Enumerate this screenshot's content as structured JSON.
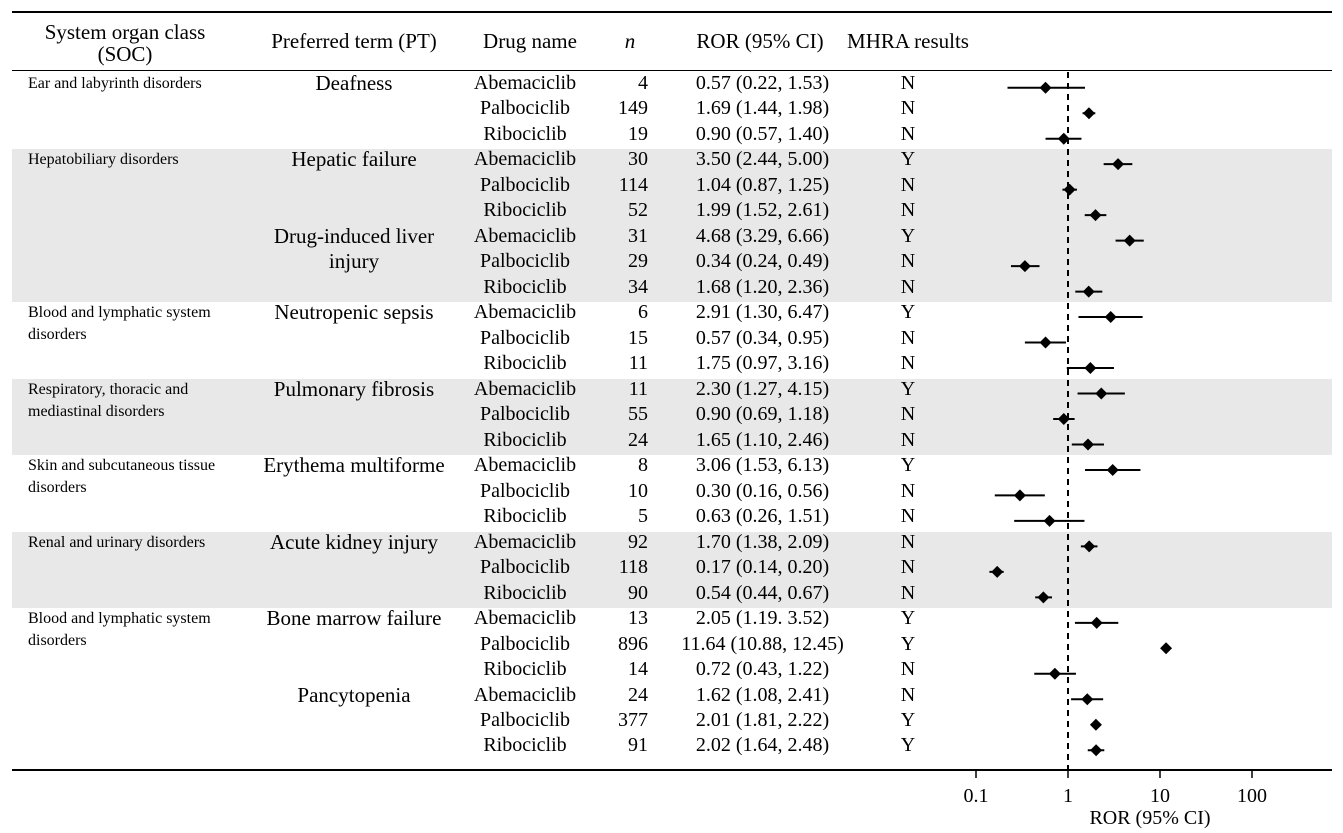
{
  "headers": {
    "soc": "System organ class\n(SOC)",
    "pt": "Preferred term (PT)",
    "drug": "Drug name",
    "n": "n",
    "ror": "ROR (95% CI)",
    "mhra": "MHRA results"
  },
  "groups": [
    {
      "soc": "Ear and labyrinth disorders",
      "shaded": false,
      "rows": 3,
      "pts": [
        {
          "label": "Deafness",
          "row": 0
        }
      ]
    },
    {
      "soc": "Hepatobiliary disorders",
      "shaded": true,
      "rows": 6,
      "pts": [
        {
          "label": "Hepatic failure",
          "row": 0
        },
        {
          "label": "Drug-induced liver\ninjury",
          "row": 3
        }
      ]
    },
    {
      "soc": "Blood and lymphatic system\ndisorders",
      "shaded": false,
      "rows": 3,
      "pts": [
        {
          "label": "Neutropenic sepsis",
          "row": 0
        }
      ]
    },
    {
      "soc": "Respiratory, thoracic and\nmediastinal disorders",
      "shaded": true,
      "rows": 3,
      "pts": [
        {
          "label": "Pulmonary fibrosis",
          "row": 0
        }
      ]
    },
    {
      "soc": "Skin and subcutaneous tissue\ndisorders",
      "shaded": false,
      "rows": 3,
      "pts": [
        {
          "label": "Erythema multiforme",
          "row": 0
        }
      ]
    },
    {
      "soc": "Renal and urinary disorders",
      "shaded": true,
      "rows": 3,
      "pts": [
        {
          "label": "Acute kidney injury",
          "row": 0
        }
      ]
    },
    {
      "soc": "Blood and lymphatic system\ndisorders",
      "shaded": false,
      "rows": 6,
      "pts": [
        {
          "label": "Bone marrow failure",
          "row": 0
        },
        {
          "label": "Pancytopenia",
          "row": 3
        }
      ]
    }
  ],
  "chart_data": {
    "type": "forest",
    "x_scale": "log",
    "xlim": [
      0.1,
      100
    ],
    "x_ticks": [
      0.1,
      1,
      10,
      100
    ],
    "x_tick_labels": [
      "0.1",
      "1",
      "10",
      "100"
    ],
    "reference_line": 1,
    "xlabel": "ROR (95% CI)",
    "rows": [
      {
        "drug": "Abemaciclib",
        "n": "4",
        "ror_text": "0.57 (0.22, 1.53)",
        "mhra": "N",
        "est": 0.57,
        "lo": 0.22,
        "hi": 1.53
      },
      {
        "drug": "Palbociclib",
        "n": "149",
        "ror_text": "1.69 (1.44, 1.98)",
        "mhra": "N",
        "est": 1.69,
        "lo": 1.44,
        "hi": 1.98
      },
      {
        "drug": "Ribociclib",
        "n": "19",
        "ror_text": "0.90 (0.57, 1.40)",
        "mhra": "N",
        "est": 0.9,
        "lo": 0.57,
        "hi": 1.4
      },
      {
        "drug": "Abemaciclib",
        "n": "30",
        "ror_text": "3.50 (2.44, 5.00)",
        "mhra": "Y",
        "est": 3.5,
        "lo": 2.44,
        "hi": 5.0
      },
      {
        "drug": "Palbociclib",
        "n": "114",
        "ror_text": "1.04 (0.87, 1.25)",
        "mhra": "N",
        "est": 1.04,
        "lo": 0.87,
        "hi": 1.25
      },
      {
        "drug": "Ribociclib",
        "n": "52",
        "ror_text": "1.99 (1.52, 2.61)",
        "mhra": "N",
        "est": 1.99,
        "lo": 1.52,
        "hi": 2.61
      },
      {
        "drug": "Abemaciclib",
        "n": "31",
        "ror_text": "4.68 (3.29, 6.66)",
        "mhra": "Y",
        "est": 4.68,
        "lo": 3.29,
        "hi": 6.66
      },
      {
        "drug": "Palbociclib",
        "n": "29",
        "ror_text": "0.34 (0.24, 0.49)",
        "mhra": "N",
        "est": 0.34,
        "lo": 0.24,
        "hi": 0.49
      },
      {
        "drug": "Ribociclib",
        "n": "34",
        "ror_text": "1.68 (1.20, 2.36)",
        "mhra": "N",
        "est": 1.68,
        "lo": 1.2,
        "hi": 2.36
      },
      {
        "drug": "Abemaciclib",
        "n": "6",
        "ror_text": "2.91 (1.30, 6.47)",
        "mhra": "Y",
        "est": 2.91,
        "lo": 1.3,
        "hi": 6.47
      },
      {
        "drug": "Palbociclib",
        "n": "15",
        "ror_text": "0.57 (0.34, 0.95)",
        "mhra": "N",
        "est": 0.57,
        "lo": 0.34,
        "hi": 0.95
      },
      {
        "drug": "Ribociclib",
        "n": "11",
        "ror_text": "1.75 (0.97, 3.16)",
        "mhra": "N",
        "est": 1.75,
        "lo": 0.97,
        "hi": 3.16
      },
      {
        "drug": "Abemaciclib",
        "n": "11",
        "ror_text": "2.30 (1.27, 4.15)",
        "mhra": "Y",
        "est": 2.3,
        "lo": 1.27,
        "hi": 4.15
      },
      {
        "drug": "Palbociclib",
        "n": "55",
        "ror_text": "0.90 (0.69, 1.18)",
        "mhra": "N",
        "est": 0.9,
        "lo": 0.69,
        "hi": 1.18
      },
      {
        "drug": "Ribociclib",
        "n": "24",
        "ror_text": "1.65 (1.10, 2.46)",
        "mhra": "N",
        "est": 1.65,
        "lo": 1.1,
        "hi": 2.46
      },
      {
        "drug": "Abemaciclib",
        "n": "8",
        "ror_text": "3.06 (1.53, 6.13)",
        "mhra": "Y",
        "est": 3.06,
        "lo": 1.53,
        "hi": 6.13
      },
      {
        "drug": "Palbociclib",
        "n": "10",
        "ror_text": "0.30 (0.16, 0.56)",
        "mhra": "N",
        "est": 0.3,
        "lo": 0.16,
        "hi": 0.56
      },
      {
        "drug": "Ribociclib",
        "n": "5",
        "ror_text": "0.63 (0.26, 1.51)",
        "mhra": "N",
        "est": 0.63,
        "lo": 0.26,
        "hi": 1.51
      },
      {
        "drug": "Abemaciclib",
        "n": "92",
        "ror_text": "1.70 (1.38, 2.09)",
        "mhra": "N",
        "est": 1.7,
        "lo": 1.38,
        "hi": 2.09
      },
      {
        "drug": "Palbociclib",
        "n": "118",
        "ror_text": "0.17 (0.14, 0.20)",
        "mhra": "N",
        "est": 0.17,
        "lo": 0.14,
        "hi": 0.2
      },
      {
        "drug": "Ribociclib",
        "n": "90",
        "ror_text": "0.54 (0.44, 0.67)",
        "mhra": "N",
        "est": 0.54,
        "lo": 0.44,
        "hi": 0.67
      },
      {
        "drug": "Abemaciclib",
        "n": "13",
        "ror_text": "2.05 (1.19. 3.52)",
        "mhra": "Y",
        "est": 2.05,
        "lo": 1.19,
        "hi": 3.52
      },
      {
        "drug": "Palbociclib",
        "n": "896",
        "ror_text": "11.64 (10.88, 12.45)",
        "mhra": "Y",
        "est": 11.64,
        "lo": 10.88,
        "hi": 12.45
      },
      {
        "drug": "Ribociclib",
        "n": "14",
        "ror_text": "0.72 (0.43, 1.22)",
        "mhra": "N",
        "est": 0.72,
        "lo": 0.43,
        "hi": 1.22
      },
      {
        "drug": "Abemaciclib",
        "n": "24",
        "ror_text": "1.62 (1.08, 2.41)",
        "mhra": "N",
        "est": 1.62,
        "lo": 1.08,
        "hi": 2.41
      },
      {
        "drug": "Palbociclib",
        "n": "377",
        "ror_text": "2.01 (1.81, 2.22)",
        "mhra": "Y",
        "est": 2.01,
        "lo": 1.81,
        "hi": 2.22
      },
      {
        "drug": "Ribociclib",
        "n": "91",
        "ror_text": "2.02 (1.64, 2.48)",
        "mhra": "Y",
        "est": 2.02,
        "lo": 1.64,
        "hi": 2.48
      }
    ]
  }
}
